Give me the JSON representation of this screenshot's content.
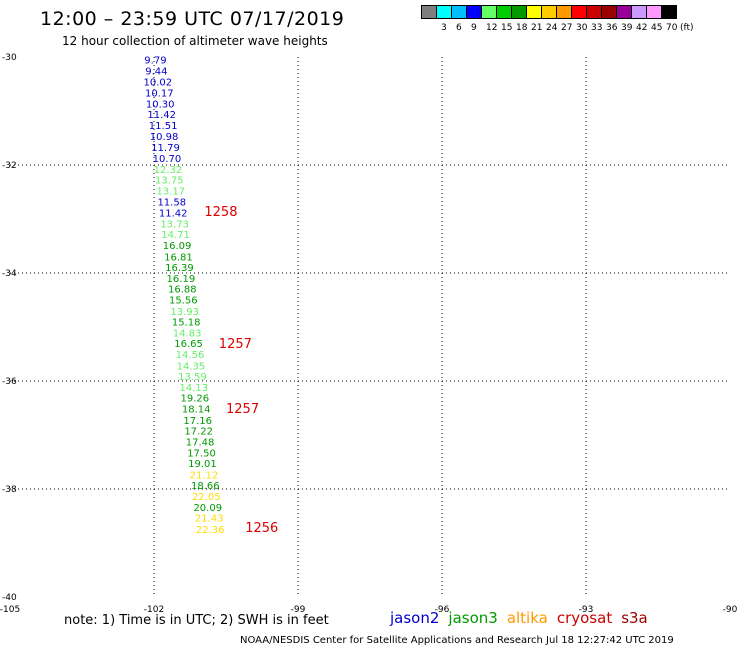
{
  "header": {
    "title": "12:00 – 23:59 UTC 07/17/2019",
    "subtitle": "12 hour collection of altimeter wave heights"
  },
  "legend": {
    "colors": [
      "#7f7f7f",
      "#00ffff",
      "#00bfff",
      "#0000ff",
      "#66ff66",
      "#00cc00",
      "#009900",
      "#ffff00",
      "#ffcc00",
      "#ff9900",
      "#ff0000",
      "#cc0000",
      "#990000",
      "#990099",
      "#cc99ff",
      "#ff99ff",
      "#000000"
    ],
    "labels": [
      "3",
      "6",
      "9",
      "12",
      "15",
      "18",
      "21",
      "24",
      "27",
      "30",
      "33",
      "36",
      "39",
      "42",
      "45",
      "70",
      "(ft)"
    ]
  },
  "map": {
    "lon_ticks": [
      "-105",
      "-102",
      "-99",
      "-96",
      "-93",
      "-90"
    ],
    "lat_ticks": [
      "-30",
      "-32",
      "-34",
      "-36",
      "-38",
      "-40"
    ],
    "lon_range": [
      -105,
      -90
    ],
    "lat_range": [
      -40,
      -30
    ],
    "grid": "dotted"
  },
  "colors": {
    "jason2": "#0000cc",
    "jason3": "#009900",
    "altika": "#ff9900",
    "cryosat": "#cc0000",
    "s3a": "#990000",
    "jason3_light": "#66ee66",
    "yellow": "#ffdd00",
    "time_label": "#dd0000"
  },
  "observations": [
    {
      "lon": -101.97,
      "lat": -30.05,
      "v": "9.79",
      "c": "#0000cc"
    },
    {
      "lon": -101.95,
      "lat": -30.25,
      "v": "9.44",
      "c": "#0000cc"
    },
    {
      "lon": -101.92,
      "lat": -30.45,
      "v": "10.02",
      "c": "#0000cc"
    },
    {
      "lon": -101.89,
      "lat": -30.66,
      "v": "10.17",
      "c": "#0000cc"
    },
    {
      "lon": -101.87,
      "lat": -30.86,
      "v": "10.30",
      "c": "#0000cc"
    },
    {
      "lon": -101.84,
      "lat": -31.06,
      "v": "11.42",
      "c": "#0000cc"
    },
    {
      "lon": -101.81,
      "lat": -31.26,
      "v": "11.51",
      "c": "#0000cc"
    },
    {
      "lon": -101.79,
      "lat": -31.46,
      "v": "10.98",
      "c": "#0000cc"
    },
    {
      "lon": -101.76,
      "lat": -31.67,
      "v": "11.79",
      "c": "#0000cc"
    },
    {
      "lon": -101.73,
      "lat": -31.87,
      "v": "10.70",
      "c": "#0000cc"
    },
    {
      "lon": -101.71,
      "lat": -32.07,
      "v": "12.32",
      "c": "#66ee66"
    },
    {
      "lon": -101.68,
      "lat": -32.27,
      "v": "13.75",
      "c": "#66ee66"
    },
    {
      "lon": -101.65,
      "lat": -32.47,
      "v": "13.17",
      "c": "#66ee66"
    },
    {
      "lon": -101.63,
      "lat": -32.68,
      "v": "11.58",
      "c": "#0000cc"
    },
    {
      "lon": -101.6,
      "lat": -32.88,
      "v": "11.42",
      "c": "#0000cc"
    },
    {
      "lon": -101.57,
      "lat": -33.08,
      "v": "13.73",
      "c": "#66ee66"
    },
    {
      "lon": -101.55,
      "lat": -33.28,
      "v": "14.71",
      "c": "#66ee66"
    },
    {
      "lon": -101.52,
      "lat": -33.48,
      "v": "16.09",
      "c": "#009900"
    },
    {
      "lon": -101.49,
      "lat": -33.69,
      "v": "16.81",
      "c": "#009900"
    },
    {
      "lon": -101.47,
      "lat": -33.89,
      "v": "16.39",
      "c": "#009900"
    },
    {
      "lon": -101.44,
      "lat": -34.09,
      "v": "16.19",
      "c": "#009900"
    },
    {
      "lon": -101.41,
      "lat": -34.29,
      "v": "16.88",
      "c": "#009900"
    },
    {
      "lon": -101.39,
      "lat": -34.49,
      "v": "15.56",
      "c": "#009900"
    },
    {
      "lon": -101.36,
      "lat": -34.7,
      "v": "13.93",
      "c": "#66ee66"
    },
    {
      "lon": -101.33,
      "lat": -34.9,
      "v": "15.18",
      "c": "#009900"
    },
    {
      "lon": -101.31,
      "lat": -35.1,
      "v": "14.83",
      "c": "#66ee66"
    },
    {
      "lon": -101.28,
      "lat": -35.3,
      "v": "16.65",
      "c": "#009900"
    },
    {
      "lon": -101.25,
      "lat": -35.5,
      "v": "14.56",
      "c": "#66ee66"
    },
    {
      "lon": -101.23,
      "lat": -35.71,
      "v": "14.35",
      "c": "#66ee66"
    },
    {
      "lon": -101.2,
      "lat": -35.91,
      "v": "13.59",
      "c": "#66ee66"
    },
    {
      "lon": -101.17,
      "lat": -36.11,
      "v": "14.13",
      "c": "#66ee66"
    },
    {
      "lon": -101.15,
      "lat": -36.31,
      "v": "19.26",
      "c": "#009900"
    },
    {
      "lon": -101.12,
      "lat": -36.51,
      "v": "18.14",
      "c": "#009900"
    },
    {
      "lon": -101.09,
      "lat": -36.72,
      "v": "17.16",
      "c": "#009900"
    },
    {
      "lon": -101.07,
      "lat": -36.92,
      "v": "17.22",
      "c": "#009900"
    },
    {
      "lon": -101.04,
      "lat": -37.12,
      "v": "17.48",
      "c": "#009900"
    },
    {
      "lon": -101.01,
      "lat": -37.32,
      "v": "17.50",
      "c": "#009900"
    },
    {
      "lon": -100.99,
      "lat": -37.52,
      "v": "19.01",
      "c": "#009900"
    },
    {
      "lon": -100.96,
      "lat": -37.73,
      "v": "21.12",
      "c": "#ffdd00"
    },
    {
      "lon": -100.93,
      "lat": -37.93,
      "v": "18.66",
      "c": "#009900"
    },
    {
      "lon": -100.91,
      "lat": -38.13,
      "v": "22.05",
      "c": "#ffdd00"
    },
    {
      "lon": -100.88,
      "lat": -38.33,
      "v": "20.09",
      "c": "#009900"
    },
    {
      "lon": -100.85,
      "lat": -38.53,
      "v": "21.43",
      "c": "#ffdd00"
    },
    {
      "lon": -100.83,
      "lat": -38.74,
      "v": "22.36",
      "c": "#ffdd00"
    }
  ],
  "time_labels": [
    {
      "lon": -100.95,
      "lat": -32.85,
      "v": "1258"
    },
    {
      "lon": -100.65,
      "lat": -35.3,
      "v": "1257"
    },
    {
      "lon": -100.5,
      "lat": -36.5,
      "v": "1257"
    },
    {
      "lon": -100.1,
      "lat": -38.7,
      "v": "1256"
    }
  ],
  "footer": {
    "note": "note: 1) Time is in UTC; 2) SWH is in feet",
    "satellites": [
      {
        "name": "jason2",
        "color": "#0000cc"
      },
      {
        "name": "jason3",
        "color": "#009900"
      },
      {
        "name": "altika",
        "color": "#ff9900"
      },
      {
        "name": "cryosat",
        "color": "#cc0000"
      },
      {
        "name": "s3a",
        "color": "#990000"
      }
    ],
    "credit": "NOAA/NESDIS Center for Satellite Applications and Research   Jul 18 12:27:42 UTC 2019"
  }
}
